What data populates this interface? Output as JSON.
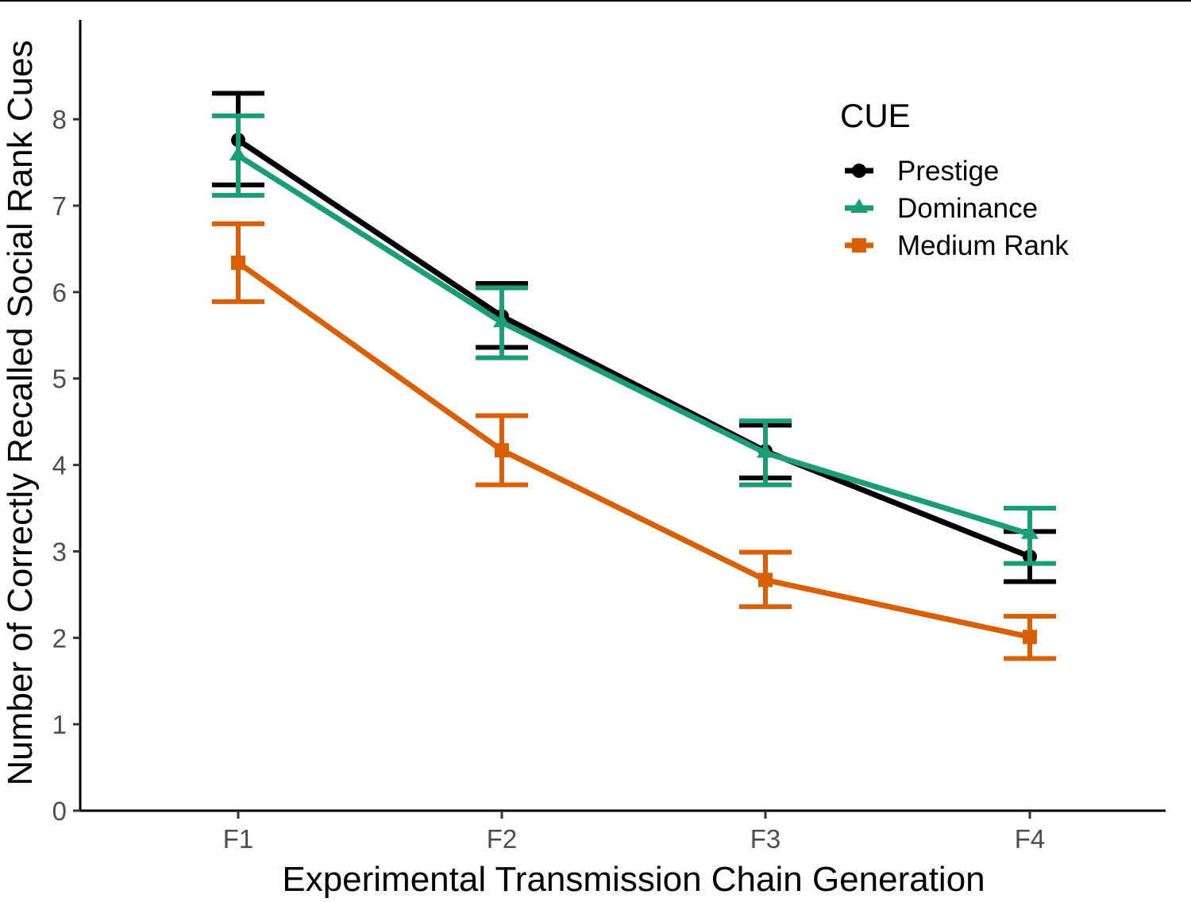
{
  "chart_data": {
    "type": "line",
    "xlabel": "Experimental Transmission Chain Generation",
    "ylabel": "Number of Correctly Recalled Social Rank Cues",
    "categories": [
      "F1",
      "F2",
      "F3",
      "F4"
    ],
    "ylim": [
      0,
      9.15
    ],
    "yticks": [
      0,
      1,
      2,
      3,
      4,
      5,
      6,
      7,
      8
    ],
    "grid": false,
    "legend": {
      "title": "CUE",
      "placement": "top-right"
    },
    "series": [
      {
        "name": "Prestige",
        "color": "#000000",
        "marker": "circle",
        "values": [
          7.76,
          5.72,
          4.16,
          2.94
        ],
        "err_low": [
          7.24,
          5.36,
          3.85,
          2.65
        ],
        "err_high": [
          8.3,
          6.1,
          4.46,
          3.23
        ]
      },
      {
        "name": "Dominance",
        "color": "#1b9e77",
        "marker": "triangle",
        "values": [
          7.58,
          5.65,
          4.14,
          3.2
        ],
        "err_low": [
          7.12,
          5.24,
          3.77,
          2.86
        ],
        "err_high": [
          8.04,
          6.05,
          4.51,
          3.5
        ]
      },
      {
        "name": "Medium Rank",
        "color": "#d95f02",
        "marker": "square",
        "values": [
          6.34,
          4.17,
          2.67,
          2.01
        ],
        "err_low": [
          5.89,
          3.77,
          2.36,
          1.76
        ],
        "err_high": [
          6.79,
          4.57,
          2.99,
          2.25
        ]
      }
    ]
  }
}
